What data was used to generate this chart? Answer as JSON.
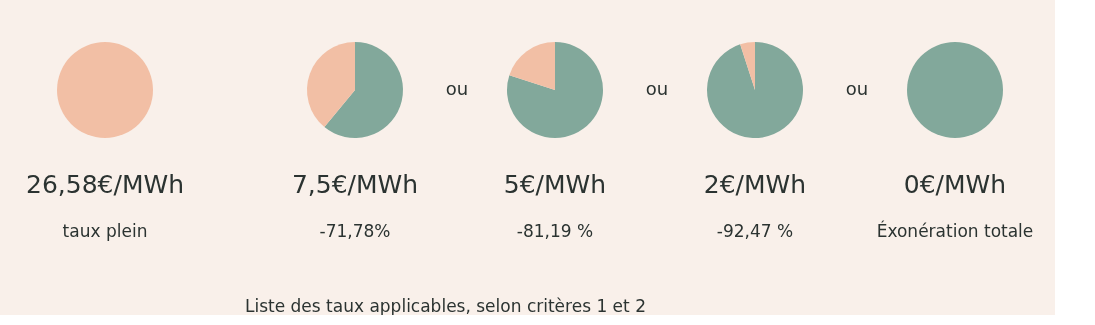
{
  "chart_data": [
    {
      "type": "pie",
      "title": "26,58€/MWh",
      "subtitle": "taux plein",
      "categories": [
        null
      ],
      "values": [
        100
      ],
      "colors": [
        "#f2bfa5"
      ]
    },
    {
      "type": "pie",
      "title": "7,5€/MWh",
      "subtitle": "-71,78%",
      "categories": [
        null,
        null
      ],
      "values": [
        61,
        39
      ],
      "colors": [
        "#82a89b",
        "#f2bfa5"
      ],
      "annotations": [
        "ou",
        "Liste des taux applicables, selon critères 1 et 2"
      ]
    },
    {
      "type": "pie",
      "title": "5€/MWh",
      "subtitle": "-81,19 %",
      "categories": [
        null,
        null
      ],
      "values": [
        80,
        20
      ],
      "colors": [
        "#82a89b",
        "#f2bfa5"
      ],
      "annotations": [
        "ou"
      ]
    },
    {
      "type": "pie",
      "title": "2€/MWh",
      "subtitle": "-92,47 %",
      "categories": [
        null,
        null
      ],
      "values": [
        95,
        5
      ],
      "colors": [
        "#82a89b",
        "#f2bfa5"
      ],
      "annotations": [
        "ou"
      ]
    },
    {
      "type": "pie",
      "title": "0€/MWh",
      "subtitle": "Éxonération totale",
      "categories": [
        null
      ],
      "values": [
        100
      ],
      "colors": [
        "#82a89b"
      ]
    }
  ]
}
